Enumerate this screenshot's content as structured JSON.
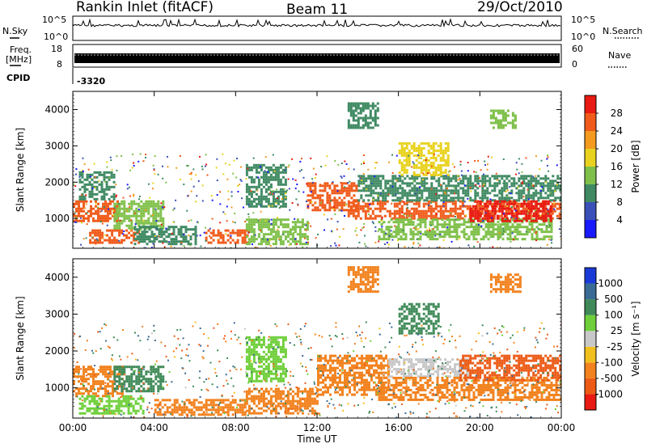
{
  "header": {
    "station": "Rankin Inlet (fitACF)",
    "beam": "Beam 11",
    "date": "29/Oct/2010"
  },
  "params": {
    "nsky_label": "N.Sky",
    "nsky_ticks": [
      "10^5",
      "10^0"
    ],
    "freq_label": "Freq.",
    "freq_unit": "[MHz]",
    "freq_ticks": [
      "18",
      "8"
    ],
    "nsearch_label": "N.Search",
    "nsearch_ticks": [
      "10^5",
      "10^0"
    ],
    "nave_label": "Nave",
    "nave_ticks": [
      "60",
      "0"
    ],
    "cpid_label": "CPID",
    "cpid_value": "-3320"
  },
  "chart_data": [
    {
      "type": "heatmap",
      "name": "power",
      "ylabel": "Slant Range [km]",
      "xlabel": "Time UT",
      "x_ticks": [
        "00:00",
        "04:00",
        "08:00",
        "12:00",
        "16:00",
        "20:00",
        "00:00"
      ],
      "xlim": [
        0,
        24
      ],
      "ylim": [
        180,
        4500
      ],
      "y_ticks": [
        "1000",
        "2000",
        "3000",
        "4000"
      ],
      "colorbar": {
        "label": "Power [dB]",
        "ticks": [
          "4",
          "8",
          "12",
          "16",
          "20",
          "24",
          "28"
        ],
        "colors": [
          "#1a1aff",
          "#3a50b8",
          "#3f8a63",
          "#7fc04a",
          "#e8d21e",
          "#f39a1f",
          "#f05a1a",
          "#e81a12"
        ]
      },
      "regions": [
        {
          "t0": 0.0,
          "t1": 2.2,
          "r0": 900,
          "r1": 1500,
          "v": 27
        },
        {
          "t0": 0.3,
          "t1": 2.0,
          "r0": 1500,
          "r1": 2300,
          "v": 10
        },
        {
          "t0": 0.8,
          "t1": 3.2,
          "r0": 300,
          "r1": 700,
          "v": 25
        },
        {
          "t0": 2.0,
          "t1": 4.5,
          "r0": 700,
          "r1": 1500,
          "v": 14
        },
        {
          "t0": 3.0,
          "t1": 6.0,
          "r0": 300,
          "r1": 800,
          "v": 9
        },
        {
          "t0": 6.5,
          "t1": 8.6,
          "r0": 300,
          "r1": 700,
          "v": 26
        },
        {
          "t0": 8.5,
          "t1": 11.5,
          "r0": 300,
          "r1": 1000,
          "v": 14
        },
        {
          "t0": 8.5,
          "t1": 10.5,
          "r0": 1300,
          "r1": 2500,
          "v": 10
        },
        {
          "t0": 11.5,
          "t1": 14.0,
          "r0": 1200,
          "r1": 2000,
          "v": 24
        },
        {
          "t0": 13.5,
          "t1": 24.0,
          "r0": 1000,
          "r1": 1500,
          "v": 27
        },
        {
          "t0": 15.0,
          "t1": 23.5,
          "r0": 400,
          "r1": 1000,
          "v": 15
        },
        {
          "t0": 14.0,
          "t1": 24.0,
          "r0": 1500,
          "r1": 2200,
          "v": 11
        },
        {
          "t0": 19.5,
          "t1": 23.5,
          "r0": 900,
          "r1": 1500,
          "v": 28
        },
        {
          "t0": 13.5,
          "t1": 15.0,
          "r0": 3500,
          "r1": 4200,
          "v": 11
        },
        {
          "t0": 16.0,
          "t1": 18.5,
          "r0": 2200,
          "r1": 3100,
          "v": 16
        },
        {
          "t0": 20.5,
          "t1": 21.8,
          "r0": 3500,
          "r1": 4000,
          "v": 12
        }
      ]
    },
    {
      "type": "heatmap",
      "name": "velocity",
      "ylabel": "Slant Range [km]",
      "xlabel": "Time UT",
      "x_ticks": [
        "00:00",
        "04:00",
        "08:00",
        "12:00",
        "16:00",
        "20:00",
        "00:00"
      ],
      "xlim": [
        0,
        24
      ],
      "ylim": [
        180,
        4500
      ],
      "y_ticks": [
        "1000",
        "2000",
        "3000",
        "4000"
      ],
      "colorbar": {
        "label": "Velocity [m s⁻¹]",
        "ticks": [
          "1000",
          "500",
          "100",
          "25",
          "-25",
          "-100",
          "-500",
          "-1000"
        ],
        "colors": [
          "#1a3ad8",
          "#3a6b95",
          "#3f8a58",
          "#6fcf3a",
          "#c8c8c8",
          "#f2c01e",
          "#f2821e",
          "#ec5a16",
          "#e81a12"
        ]
      },
      "regions": [
        {
          "t0": 0.0,
          "t1": 2.5,
          "r0": 800,
          "r1": 1600,
          "v": -300
        },
        {
          "t0": 0.3,
          "t1": 3.5,
          "r0": 300,
          "r1": 800,
          "v": 60
        },
        {
          "t0": 2.0,
          "t1": 4.5,
          "r0": 900,
          "r1": 1600,
          "v": 200
        },
        {
          "t0": 4.0,
          "t1": 8.5,
          "r0": 300,
          "r1": 700,
          "v": -400
        },
        {
          "t0": 8.5,
          "t1": 10.5,
          "r0": 1200,
          "r1": 2400,
          "v": 80
        },
        {
          "t0": 8.5,
          "t1": 12.0,
          "r0": 300,
          "r1": 1000,
          "v": -200
        },
        {
          "t0": 12.0,
          "t1": 15.5,
          "r0": 800,
          "r1": 1900,
          "v": -400
        },
        {
          "t0": 15.5,
          "t1": 19.5,
          "r0": 1300,
          "r1": 1800,
          "v": -10
        },
        {
          "t0": 15.0,
          "t1": 24.0,
          "r0": 700,
          "r1": 1300,
          "v": -350
        },
        {
          "t0": 19.0,
          "t1": 24.0,
          "r0": 1200,
          "r1": 1900,
          "v": -600
        },
        {
          "t0": 13.5,
          "t1": 15.0,
          "r0": 3600,
          "r1": 4300,
          "v": -400
        },
        {
          "t0": 16.0,
          "t1": 18.0,
          "r0": 2500,
          "r1": 3300,
          "v": 150
        },
        {
          "t0": 20.5,
          "t1": 22.0,
          "r0": 3600,
          "r1": 4100,
          "v": -300
        }
      ]
    }
  ]
}
